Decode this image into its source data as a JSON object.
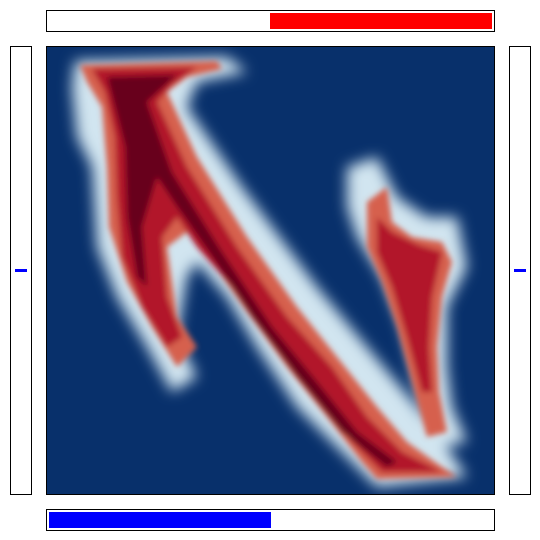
{
  "controls": {
    "top_slider": {
      "value": 0.5,
      "fill_side": "right",
      "color": "#ff0000"
    },
    "bottom_slider": {
      "value": 0.5,
      "fill_side": "left",
      "color": "#0000ff"
    },
    "left_slider": {
      "value": 0.5,
      "color": "#0000ff"
    },
    "right_slider": {
      "value": 0.5,
      "color": "#0000ff"
    }
  },
  "field": {
    "colormap": "RdBu_r",
    "background_color": "#08306b",
    "high_color": "#67001f"
  }
}
